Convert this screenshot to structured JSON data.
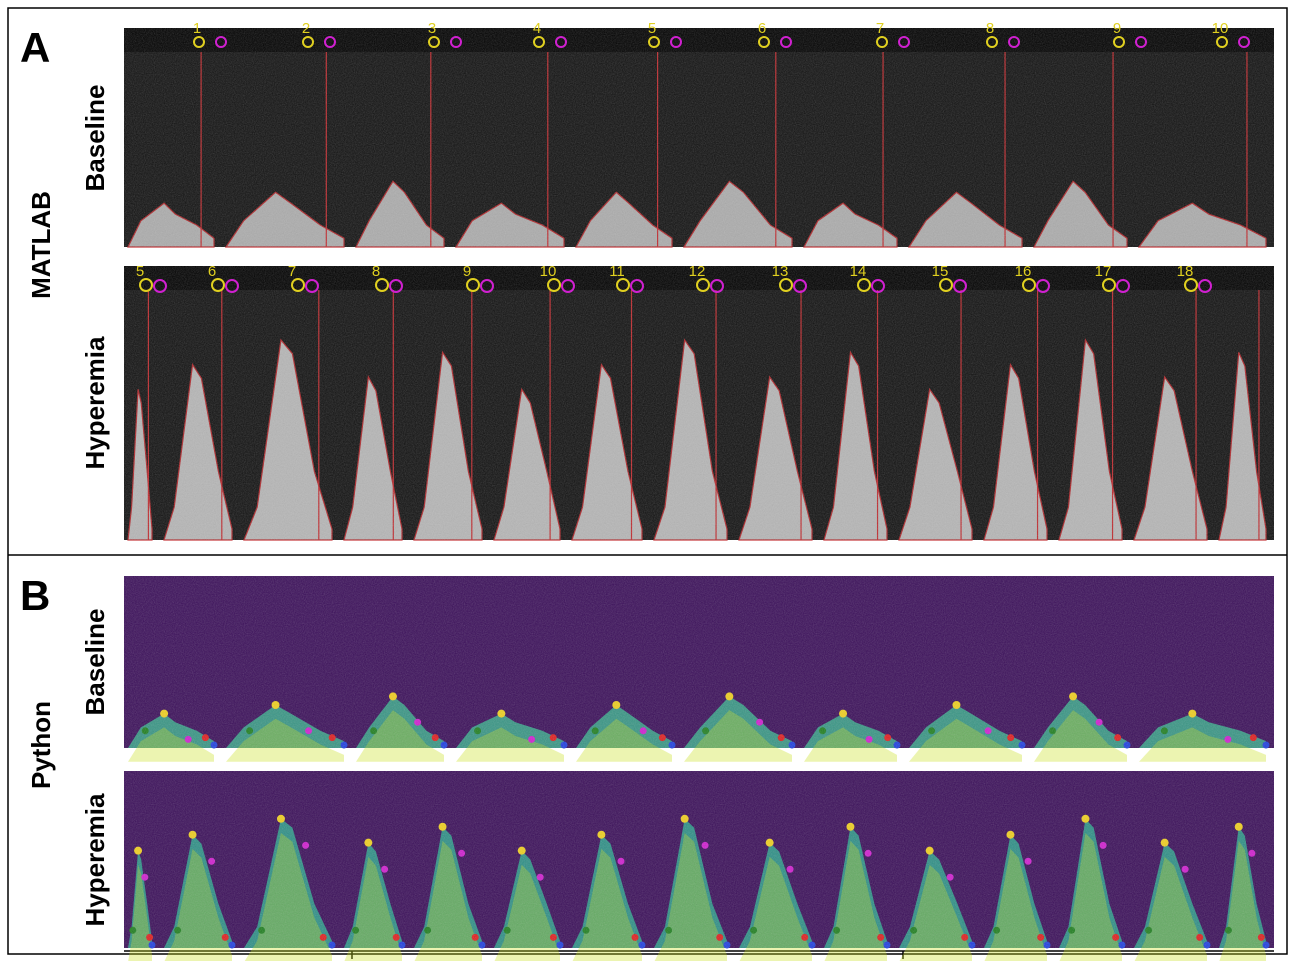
{
  "panels": [
    {
      "letter": "A",
      "method": "MATLAB",
      "rows": [
        {
          "label": "Baseline",
          "beats": [
            "1",
            "2",
            "3",
            "4",
            "5",
            "6",
            "7",
            "8",
            "9",
            "10"
          ]
        },
        {
          "label": "Hyperemia",
          "beats": [
            "5",
            "6",
            "7",
            "8",
            "9",
            "10",
            "11",
            "12",
            "13",
            "14",
            "15",
            "16",
            "17",
            "18"
          ]
        }
      ]
    },
    {
      "letter": "B",
      "method": "Python",
      "rows": [
        {
          "label": "Baseline"
        },
        {
          "label": "Hyperemia"
        }
      ]
    }
  ]
}
